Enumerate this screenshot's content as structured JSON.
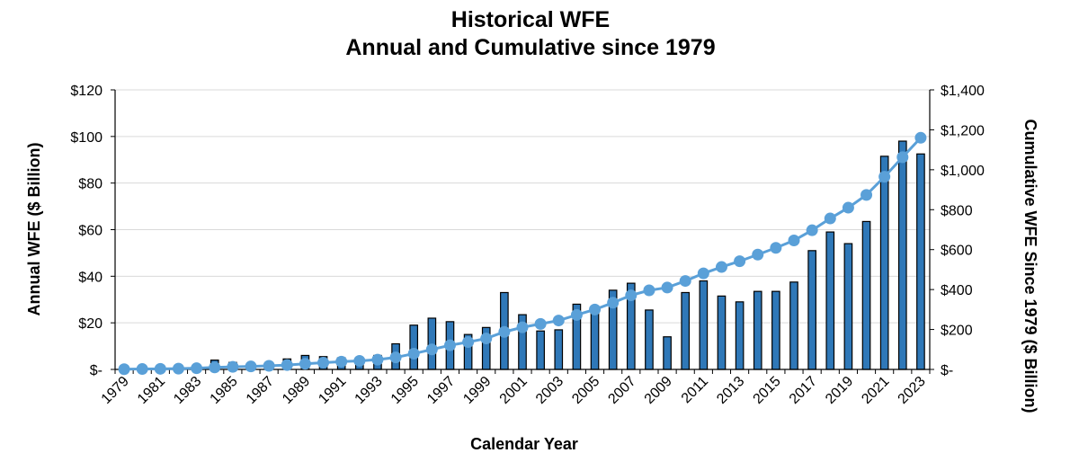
{
  "chart_data": {
    "type": "bar+line",
    "title": "Historical WFE",
    "subtitle": "Annual and Cumulative since 1979",
    "xlabel": "Calendar Year",
    "ylabel_left": "Annual WFE ($ Billion)",
    "ylabel_right": "Cumulative WFE Since 1979 ($ Billion)",
    "ylim_left": [
      0,
      120
    ],
    "ylim_right": [
      0,
      1400
    ],
    "yticks_left": [
      "$-",
      "$20",
      "$40",
      "$60",
      "$80",
      "$100",
      "$120"
    ],
    "yticks_right": [
      "$-",
      "$200",
      "$400",
      "$600",
      "$800",
      "$1,000",
      "$1,200",
      "$1,400"
    ],
    "grid": true,
    "legend": "none",
    "colors": {
      "bar": "#2f78b8",
      "bar_outline": "#000000",
      "line": "#5aa0d8",
      "grid": "#d9d9d9"
    },
    "categories": [
      "1979",
      "1980",
      "1981",
      "1982",
      "1983",
      "1984",
      "1985",
      "1986",
      "1987",
      "1988",
      "1989",
      "1990",
      "1991",
      "1992",
      "1993",
      "1994",
      "1995",
      "1996",
      "1997",
      "1998",
      "1999",
      "2000",
      "2001",
      "2002",
      "2003",
      "2004",
      "2005",
      "2006",
      "2007",
      "2008",
      "2009",
      "2010",
      "2011",
      "2012",
      "2013",
      "2014",
      "2015",
      "2016",
      "2017",
      "2018",
      "2019",
      "2020",
      "2021",
      "2022",
      "2023"
    ],
    "xtick_labels": [
      "1979",
      "",
      "1981",
      "",
      "1983",
      "",
      "1985",
      "",
      "1987",
      "",
      "1989",
      "",
      "1991",
      "",
      "1993",
      "",
      "1995",
      "",
      "1997",
      "",
      "1999",
      "",
      "2001",
      "",
      "2003",
      "",
      "2005",
      "",
      "2007",
      "",
      "2009",
      "",
      "2011",
      "",
      "2013",
      "",
      "2015",
      "",
      "2017",
      "",
      "2019",
      "",
      "2021",
      "",
      "2023"
    ],
    "series": [
      {
        "type": "bar",
        "axis": "left",
        "values": [
          0.5,
          0.5,
          0.5,
          0.5,
          1.5,
          4,
          3,
          2,
          3,
          4.5,
          6,
          5.5,
          5,
          4.5,
          6,
          11,
          19,
          22,
          20.5,
          15,
          18,
          33,
          23.5,
          16.5,
          17,
          28,
          27,
          34,
          37,
          25.5,
          14,
          33,
          38,
          31.5,
          29,
          33.5,
          33.5,
          37.5,
          51,
          59,
          54,
          63.5,
          91.5,
          98,
          92.5
        ]
      },
      {
        "type": "line",
        "axis": "right",
        "values": [
          1,
          2,
          3,
          4,
          6,
          10,
          13,
          15,
          18,
          22,
          28,
          34,
          39,
          43,
          49,
          60,
          79,
          100,
          121,
          137,
          155,
          188,
          211,
          228,
          245,
          273,
          300,
          334,
          371,
          396,
          410,
          443,
          481,
          513,
          542,
          575,
          609,
          646,
          697,
          756,
          810,
          874,
          965,
          1063,
          1160
        ]
      }
    ]
  }
}
